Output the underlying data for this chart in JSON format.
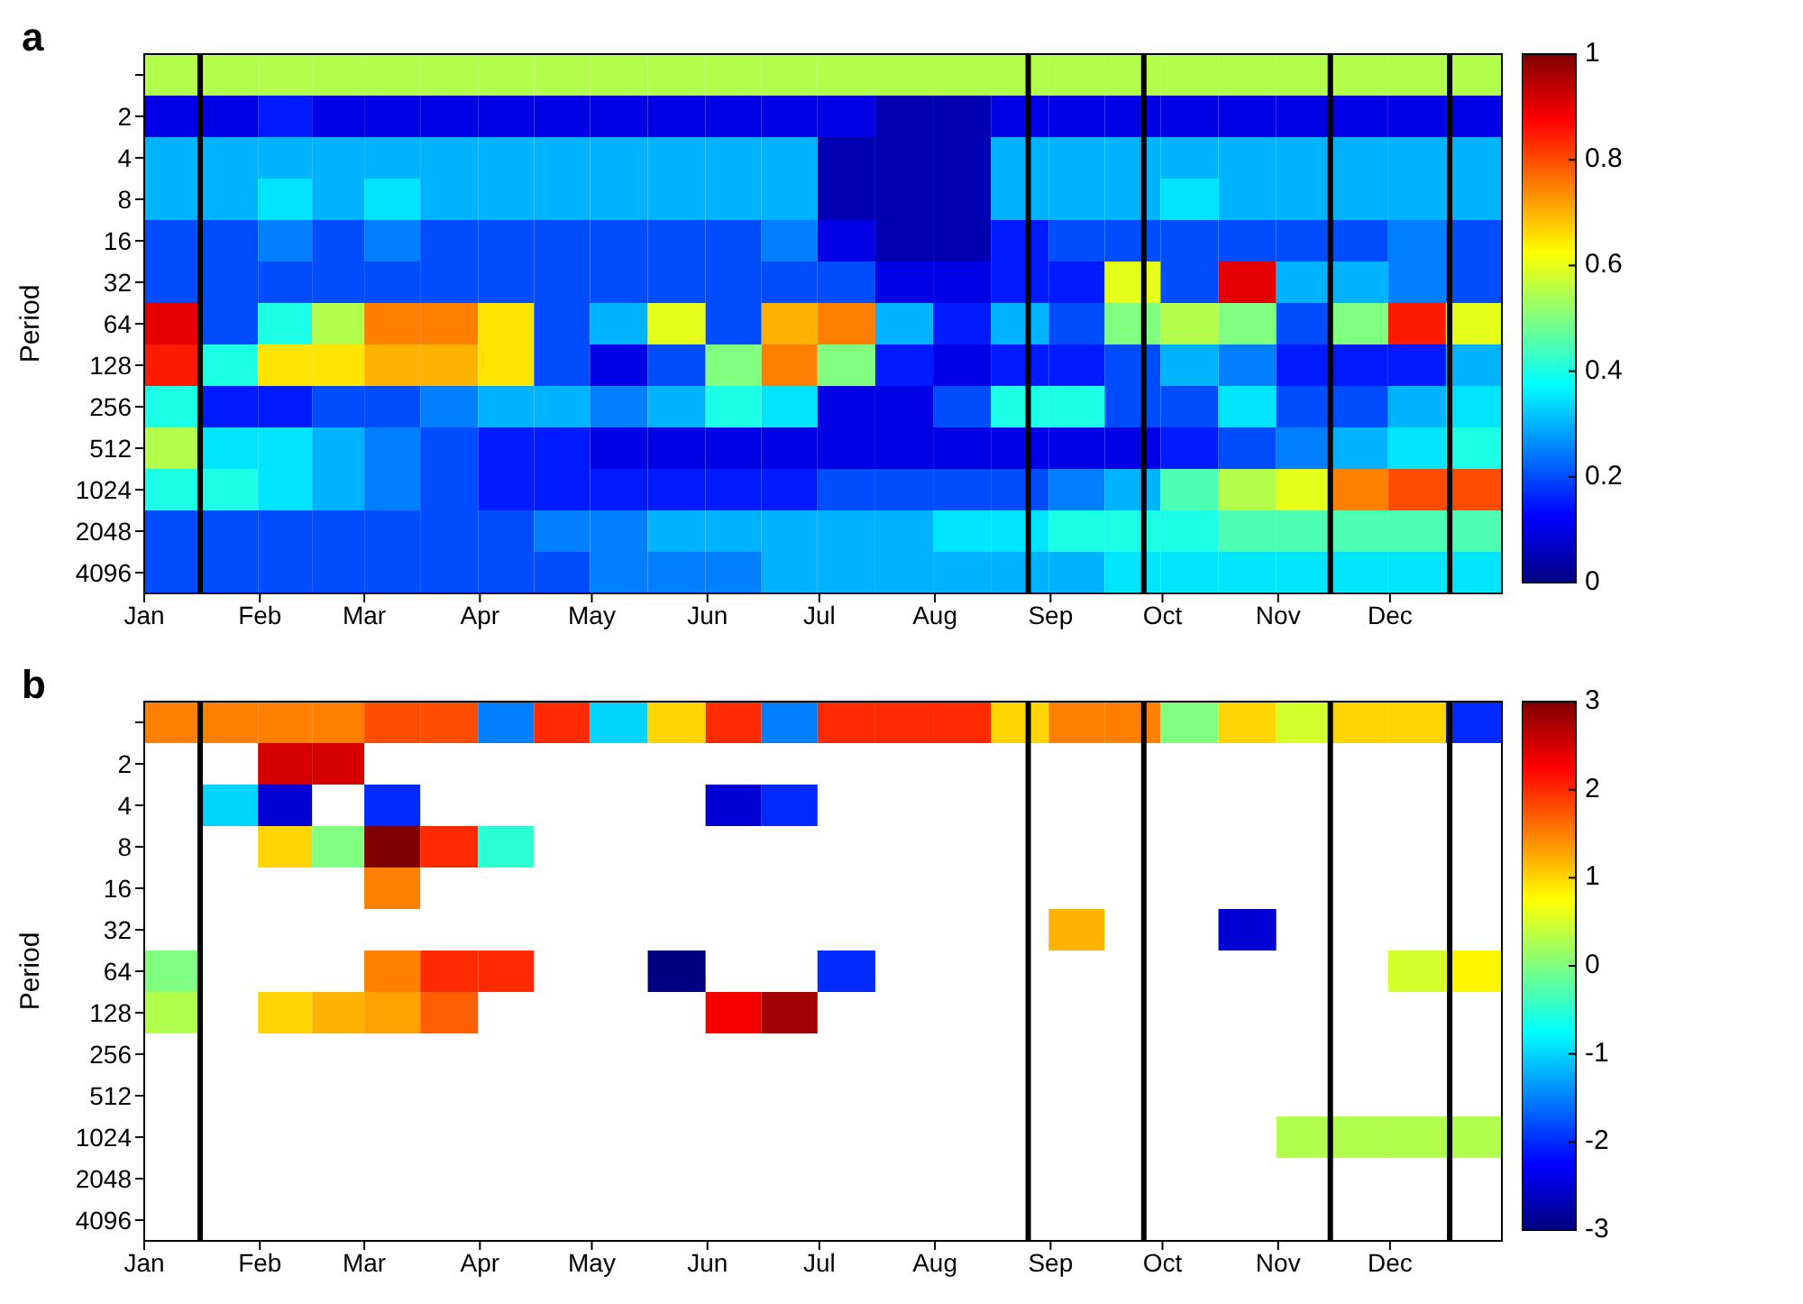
{
  "chart_data": [
    {
      "type": "heatmap",
      "title": "a",
      "ylabel": "Period",
      "x": [
        "--01-08",
        "--01-24",
        "--02-08",
        "--02-22",
        "--03-08",
        "--03-24",
        "--04-08",
        "--04-23",
        "--05-08",
        "--05-24",
        "--06-08",
        "--06-23",
        "--07-08",
        "--07-24",
        "--08-08",
        "--08-24",
        "--09-08",
        "--09-23",
        "--10-08",
        "--10-24",
        "--11-08",
        "--11-23",
        "--12-08",
        "--12-24"
      ],
      "xlim": [
        "--01-01",
        "--12-31"
      ],
      "xticks": [
        {
          "value": "--01-01",
          "label": "Jan"
        },
        {
          "value": "--02-01",
          "label": "Feb"
        },
        {
          "value": "--03-01",
          "label": "Mar"
        },
        {
          "value": "--04-01",
          "label": "Apr"
        },
        {
          "value": "--05-01",
          "label": "May"
        },
        {
          "value": "--06-01",
          "label": "Jun"
        },
        {
          "value": "--07-01",
          "label": "Jul"
        },
        {
          "value": "--08-01",
          "label": "Aug"
        },
        {
          "value": "--09-01",
          "label": "Sep"
        },
        {
          "value": "--10-01",
          "label": "Oct"
        },
        {
          "value": "--11-01",
          "label": "Nov"
        },
        {
          "value": "--12-01",
          "label": "Dec"
        }
      ],
      "y_categories": [
        null,
        "2",
        "4",
        "8",
        "16",
        "32",
        "64",
        "128",
        "256",
        "512",
        "1024",
        "2048",
        "4096"
      ],
      "cells": [
        [
          0.55,
          0.55,
          0.55,
          0.55,
          0.55,
          0.55,
          0.55,
          0.55,
          0.55,
          0.55,
          0.55,
          0.55,
          0.55,
          0.55,
          0.55,
          0.55,
          0.55,
          0.55,
          0.55,
          0.55,
          0.55,
          0.55,
          0.55,
          0.55
        ],
        [
          0.1,
          0.1,
          0.15,
          0.1,
          0.1,
          0.1,
          0.1,
          0.1,
          0.1,
          0.1,
          0.1,
          0.1,
          0.1,
          0.05,
          0.05,
          0.1,
          0.1,
          0.1,
          0.1,
          0.1,
          0.1,
          0.1,
          0.1,
          0.1
        ],
        [
          0.3,
          0.3,
          0.3,
          0.3,
          0.3,
          0.3,
          0.3,
          0.3,
          0.3,
          0.3,
          0.3,
          0.3,
          0.05,
          0.05,
          0.05,
          0.3,
          0.3,
          0.3,
          0.3,
          0.3,
          0.3,
          0.3,
          0.3,
          0.3
        ],
        [
          0.3,
          0.3,
          0.35,
          0.3,
          0.35,
          0.3,
          0.3,
          0.3,
          0.3,
          0.3,
          0.3,
          0.3,
          0.05,
          0.05,
          0.05,
          0.3,
          0.3,
          0.3,
          0.35,
          0.3,
          0.3,
          0.3,
          0.3,
          0.3
        ],
        [
          0.2,
          0.2,
          0.25,
          0.2,
          0.25,
          0.2,
          0.2,
          0.2,
          0.2,
          0.2,
          0.2,
          0.25,
          0.1,
          0.05,
          0.05,
          0.15,
          0.2,
          0.2,
          0.2,
          0.2,
          0.2,
          0.2,
          0.25,
          0.2
        ],
        [
          0.2,
          0.2,
          0.2,
          0.2,
          0.2,
          0.2,
          0.2,
          0.2,
          0.2,
          0.2,
          0.2,
          0.2,
          0.2,
          0.1,
          0.1,
          0.15,
          0.15,
          0.6,
          0.2,
          0.9,
          0.3,
          0.3,
          0.25,
          0.2
        ],
        [
          0.9,
          0.2,
          0.4,
          0.55,
          0.75,
          0.75,
          0.65,
          0.2,
          0.3,
          0.6,
          0.2,
          0.7,
          0.75,
          0.3,
          0.15,
          0.3,
          0.2,
          0.5,
          0.55,
          0.5,
          0.2,
          0.5,
          0.85,
          0.6
        ],
        [
          0.85,
          0.4,
          0.65,
          0.65,
          0.7,
          0.7,
          0.65,
          0.2,
          0.1,
          0.2,
          0.5,
          0.75,
          0.5,
          0.15,
          0.1,
          0.15,
          0.15,
          0.2,
          0.3,
          0.25,
          0.15,
          0.15,
          0.15,
          0.3
        ],
        [
          0.4,
          0.15,
          0.15,
          0.2,
          0.2,
          0.25,
          0.3,
          0.3,
          0.25,
          0.3,
          0.4,
          0.35,
          0.1,
          0.1,
          0.2,
          0.4,
          0.4,
          0.2,
          0.2,
          0.35,
          0.2,
          0.2,
          0.3,
          0.35
        ],
        [
          0.55,
          0.35,
          0.35,
          0.3,
          0.25,
          0.2,
          0.15,
          0.15,
          0.1,
          0.1,
          0.1,
          0.1,
          0.1,
          0.1,
          0.1,
          0.1,
          0.1,
          0.1,
          0.15,
          0.2,
          0.25,
          0.3,
          0.35,
          0.4
        ],
        [
          0.4,
          0.4,
          0.35,
          0.3,
          0.25,
          0.2,
          0.15,
          0.15,
          0.15,
          0.15,
          0.15,
          0.15,
          0.2,
          0.2,
          0.2,
          0.2,
          0.25,
          0.3,
          0.45,
          0.55,
          0.6,
          0.75,
          0.8,
          0.8
        ],
        [
          0.2,
          0.2,
          0.2,
          0.2,
          0.2,
          0.2,
          0.2,
          0.25,
          0.25,
          0.3,
          0.3,
          0.3,
          0.3,
          0.3,
          0.35,
          0.35,
          0.4,
          0.4,
          0.4,
          0.45,
          0.45,
          0.45,
          0.45,
          0.45
        ],
        [
          0.2,
          0.2,
          0.2,
          0.2,
          0.2,
          0.2,
          0.2,
          0.2,
          0.25,
          0.25,
          0.25,
          0.3,
          0.3,
          0.3,
          0.3,
          0.3,
          0.3,
          0.35,
          0.35,
          0.35,
          0.35,
          0.35,
          0.35,
          0.35
        ]
      ],
      "clim": [
        0,
        1
      ],
      "cticks": [
        0,
        0.2,
        0.4,
        0.6,
        0.8,
        1
      ],
      "ref_lines": [
        {
          "axis": "x",
          "value": "--01-16",
          "color": "#000000"
        },
        {
          "axis": "x",
          "value": "--08-26",
          "color": "#000000"
        },
        {
          "axis": "x",
          "value": "--09-26",
          "color": "#000000"
        },
        {
          "axis": "x",
          "value": "--11-15",
          "color": "#000000"
        },
        {
          "axis": "x",
          "value": "--12-17",
          "color": "#000000"
        }
      ]
    },
    {
      "type": "heatmap",
      "title": "b",
      "ylabel": "Period",
      "x": [
        "--01-08",
        "--01-24",
        "--02-08",
        "--02-22",
        "--03-08",
        "--03-24",
        "--04-08",
        "--04-23",
        "--05-08",
        "--05-24",
        "--06-08",
        "--06-23",
        "--07-08",
        "--07-24",
        "--08-08",
        "--08-24",
        "--09-08",
        "--09-23",
        "--10-08",
        "--10-24",
        "--11-08",
        "--11-23",
        "--12-08",
        "--12-24"
      ],
      "xlim": [
        "--01-01",
        "--12-31"
      ],
      "xticks": [
        {
          "value": "--01-01",
          "label": "Jan"
        },
        {
          "value": "--02-01",
          "label": "Feb"
        },
        {
          "value": "--03-01",
          "label": "Mar"
        },
        {
          "value": "--04-01",
          "label": "Apr"
        },
        {
          "value": "--05-01",
          "label": "May"
        },
        {
          "value": "--06-01",
          "label": "Jun"
        },
        {
          "value": "--07-01",
          "label": "Jul"
        },
        {
          "value": "--08-01",
          "label": "Aug"
        },
        {
          "value": "--09-01",
          "label": "Sep"
        },
        {
          "value": "--10-01",
          "label": "Oct"
        },
        {
          "value": "--11-01",
          "label": "Nov"
        },
        {
          "value": "--12-01",
          "label": "Dec"
        }
      ],
      "y_categories": [
        null,
        "2",
        "4",
        "8",
        "16",
        "32",
        "64",
        "128",
        "256",
        "512",
        "1024",
        "2048",
        "4096"
      ],
      "cells": [
        [
          1.5,
          1.5,
          1.5,
          1.5,
          1.8,
          1.8,
          -1.5,
          2,
          -1,
          1,
          2,
          -1.5,
          2,
          2,
          2,
          1,
          1.5,
          1.5,
          0,
          1,
          0.5,
          1,
          1,
          -2
        ],
        [
          null,
          null,
          2.5,
          2.5,
          null,
          null,
          null,
          null,
          null,
          null,
          null,
          null,
          null,
          null,
          null,
          null,
          null,
          null,
          null,
          null,
          null,
          null,
          null,
          null
        ],
        [
          null,
          -1,
          -2.5,
          null,
          -2,
          null,
          null,
          null,
          null,
          null,
          -2.5,
          -2,
          null,
          null,
          null,
          null,
          null,
          null,
          null,
          null,
          null,
          null,
          null,
          null
        ],
        [
          null,
          null,
          1,
          0,
          3,
          2,
          -0.5,
          null,
          null,
          null,
          null,
          null,
          null,
          null,
          null,
          null,
          null,
          null,
          null,
          null,
          null,
          null,
          null,
          null
        ],
        [
          null,
          null,
          null,
          null,
          1.5,
          null,
          null,
          null,
          null,
          null,
          null,
          null,
          null,
          null,
          null,
          null,
          null,
          null,
          null,
          null,
          null,
          null,
          null,
          null
        ],
        [
          null,
          null,
          null,
          null,
          null,
          null,
          null,
          null,
          null,
          null,
          null,
          null,
          null,
          null,
          null,
          null,
          1.2,
          null,
          null,
          -2.5,
          null,
          null,
          null,
          null
        ],
        [
          0,
          null,
          null,
          null,
          1.5,
          2,
          2,
          null,
          null,
          -3,
          null,
          null,
          -2,
          null,
          null,
          null,
          null,
          null,
          null,
          null,
          null,
          null,
          0.5,
          0.8
        ],
        [
          0.3,
          null,
          1,
          1.2,
          1.3,
          1.7,
          null,
          null,
          null,
          null,
          2.3,
          2.8,
          null,
          null,
          null,
          null,
          null,
          null,
          null,
          null,
          null,
          null,
          null,
          null
        ],
        [
          null,
          null,
          null,
          null,
          null,
          null,
          null,
          null,
          null,
          null,
          null,
          null,
          null,
          null,
          null,
          null,
          null,
          null,
          null,
          null,
          null,
          null,
          null,
          null
        ],
        [
          null,
          null,
          null,
          null,
          null,
          null,
          null,
          null,
          null,
          null,
          null,
          null,
          null,
          null,
          null,
          null,
          null,
          null,
          null,
          null,
          null,
          null,
          null,
          null
        ],
        [
          null,
          null,
          null,
          null,
          null,
          null,
          null,
          null,
          null,
          null,
          null,
          null,
          null,
          null,
          null,
          null,
          null,
          null,
          null,
          null,
          0.3,
          0.3,
          0.3,
          0.3
        ],
        [
          null,
          null,
          null,
          null,
          null,
          null,
          null,
          null,
          null,
          null,
          null,
          null,
          null,
          null,
          null,
          null,
          null,
          null,
          null,
          null,
          null,
          null,
          null,
          null
        ],
        [
          null,
          null,
          null,
          null,
          null,
          null,
          null,
          null,
          null,
          null,
          null,
          null,
          null,
          null,
          null,
          null,
          null,
          null,
          null,
          null,
          null,
          null,
          null,
          null
        ]
      ],
      "clim": [
        -3,
        3
      ],
      "cticks": [
        -3,
        -2,
        -1,
        0,
        1,
        2,
        3
      ],
      "ref_lines": [
        {
          "axis": "x",
          "value": "--01-16",
          "color": "#000000"
        },
        {
          "axis": "x",
          "value": "--08-26",
          "color": "#000000"
        },
        {
          "axis": "x",
          "value": "--09-26",
          "color": "#000000"
        },
        {
          "axis": "x",
          "value": "--11-15",
          "color": "#000000"
        },
        {
          "axis": "x",
          "value": "--12-17",
          "color": "#000000"
        }
      ]
    }
  ]
}
